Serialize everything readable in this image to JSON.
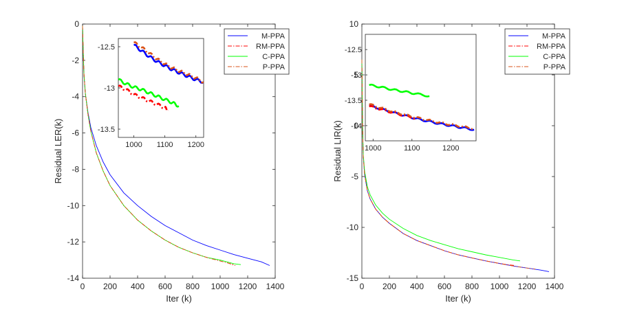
{
  "colors": {
    "M-PPA": "#0000ff",
    "RM-PPA": "#ff0000",
    "C-PPA": "#00ff00",
    "P-PPA": "#d95319"
  },
  "chart_data": [
    {
      "type": "line",
      "xlabel": "Iter (k)",
      "ylabel": "Residual LER(k)",
      "xlim": [
        0,
        1400
      ],
      "ylim": [
        -14,
        0
      ],
      "xticks": [
        "0",
        "200",
        "400",
        "600",
        "800",
        "1000",
        "1200",
        "1400"
      ],
      "yticks": [
        "0",
        "-2",
        "-4",
        "-6",
        "-8",
        "-10",
        "-12",
        "-14"
      ],
      "legend": {
        "placement": "top-right",
        "entries": [
          "M-PPA",
          "RM-PPA",
          "C-PPA",
          "P-PPA"
        ]
      },
      "series": [
        {
          "name": "M-PPA",
          "style": "solid",
          "x": [
            0,
            5,
            10,
            20,
            40,
            60,
            100,
            150,
            200,
            300,
            400,
            500,
            600,
            700,
            800,
            900,
            1000,
            1100,
            1200,
            1300,
            1360
          ],
          "y": [
            -0.1,
            -1.6,
            -2.8,
            -3.8,
            -4.9,
            -5.7,
            -6.7,
            -7.6,
            -8.3,
            -9.3,
            -10.0,
            -10.6,
            -11.1,
            -11.5,
            -11.9,
            -12.2,
            -12.45,
            -12.7,
            -12.9,
            -13.1,
            -13.3
          ]
        },
        {
          "name": "RM-PPA",
          "style": "dashdot",
          "x": [
            0,
            5,
            10,
            20,
            40,
            60,
            100,
            150,
            200,
            300,
            400,
            500,
            600,
            700,
            800,
            900,
            1000,
            1050,
            1110
          ],
          "y": [
            -0.1,
            -1.5,
            -2.7,
            -3.8,
            -5.0,
            -5.9,
            -7.1,
            -8.1,
            -8.9,
            -10.0,
            -10.8,
            -11.4,
            -11.9,
            -12.3,
            -12.6,
            -12.85,
            -13.05,
            -13.15,
            -13.3
          ]
        },
        {
          "name": "C-PPA",
          "style": "solid",
          "x": [
            0,
            5,
            10,
            20,
            40,
            60,
            100,
            150,
            200,
            300,
            400,
            500,
            600,
            700,
            800,
            900,
            1000,
            1100,
            1150
          ],
          "y": [
            -0.1,
            -1.5,
            -2.7,
            -3.8,
            -5.0,
            -5.9,
            -7.1,
            -8.1,
            -8.9,
            -10.0,
            -10.8,
            -11.4,
            -11.9,
            -12.3,
            -12.6,
            -12.85,
            -13.0,
            -13.2,
            -13.25
          ]
        },
        {
          "name": "P-PPA",
          "style": "dashdot",
          "x": [
            0,
            5,
            10,
            20,
            40,
            60,
            100,
            150,
            200,
            300,
            400,
            500,
            600,
            700,
            800,
            900,
            1000,
            1050,
            1100
          ],
          "y": [
            -0.1,
            -1.5,
            -2.7,
            -3.8,
            -5.0,
            -5.9,
            -7.1,
            -8.1,
            -8.9,
            -10.0,
            -10.8,
            -11.4,
            -11.9,
            -12.3,
            -12.6,
            -12.85,
            -13.05,
            -13.15,
            -13.25
          ]
        }
      ],
      "inset": {
        "xlim": [
          950,
          1225
        ],
        "ylim": [
          -13.6,
          -12.4
        ],
        "xticks": [
          "1000",
          "1100",
          "1200"
        ],
        "yticks": [
          "-12.5",
          "-13",
          "-13.5"
        ],
        "series": [
          {
            "name": "M-PPA",
            "x": [
              1000,
              1025,
              1050,
              1075,
              1100,
              1125,
              1150,
              1175,
              1200,
              1225
            ],
            "y": [
              -12.48,
              -12.55,
              -12.62,
              -12.68,
              -12.73,
              -12.78,
              -12.82,
              -12.86,
              -12.9,
              -12.93
            ]
          },
          {
            "name": "RM-PPA",
            "x": [
              950,
              975,
              1000,
              1025,
              1050,
              1075,
              1100,
              1110
            ],
            "y": [
              -12.98,
              -13.02,
              -13.08,
              -13.12,
              -13.16,
              -13.2,
              -13.24,
              -13.27
            ]
          },
          {
            "name": "C-PPA",
            "x": [
              950,
              975,
              1000,
              1025,
              1050,
              1075,
              1100,
              1125,
              1145
            ],
            "y": [
              -12.9,
              -12.95,
              -12.99,
              -13.02,
              -13.06,
              -13.1,
              -13.14,
              -13.18,
              -13.22
            ]
          },
          {
            "name": "P-PPA",
            "x": [
              1000,
              1025,
              1050,
              1075,
              1100,
              1125,
              1150,
              1175,
              1200,
              1225
            ],
            "y": [
              -12.45,
              -12.51,
              -12.58,
              -12.65,
              -12.71,
              -12.76,
              -12.8,
              -12.84,
              -12.88,
              -12.93
            ]
          }
        ]
      }
    },
    {
      "type": "line",
      "xlabel": "Iter (k)",
      "ylabel": "Residual LIR(k)",
      "xlim": [
        0,
        1400
      ],
      "ylim": [
        -15,
        10
      ],
      "xticks": [
        "0",
        "200",
        "400",
        "600",
        "800",
        "1000",
        "1200",
        "1400"
      ],
      "yticks": [
        "10",
        "5",
        "0",
        "-5",
        "-10",
        "-15"
      ],
      "legend": {
        "placement": "top-right",
        "entries": [
          "M-PPA",
          "RM-PPA",
          "C-PPA",
          "P-PPA"
        ]
      },
      "series": [
        {
          "name": "M-PPA",
          "style": "solid",
          "x": [
            0,
            5,
            10,
            20,
            40,
            60,
            100,
            150,
            200,
            300,
            400,
            500,
            600,
            700,
            800,
            900,
            1000,
            1100,
            1200,
            1300,
            1360
          ],
          "y": [
            6.5,
            0,
            -3.0,
            -4.8,
            -6.4,
            -7.2,
            -8.2,
            -9.0,
            -9.6,
            -10.6,
            -11.3,
            -11.8,
            -12.3,
            -12.7,
            -13.0,
            -13.3,
            -13.55,
            -13.8,
            -14.0,
            -14.2,
            -14.35
          ]
        },
        {
          "name": "RM-PPA",
          "style": "dashdot",
          "x": [
            0,
            5,
            10,
            20,
            40,
            60,
            100,
            150,
            200,
            300,
            400,
            500,
            600,
            700,
            800,
            900,
            1000,
            1050,
            1110
          ],
          "y": [
            6.5,
            0,
            -3.0,
            -4.8,
            -6.4,
            -7.2,
            -8.2,
            -9.0,
            -9.6,
            -10.6,
            -11.3,
            -11.8,
            -12.3,
            -12.7,
            -13.0,
            -13.3,
            -13.55,
            -13.65,
            -13.75
          ]
        },
        {
          "name": "C-PPA",
          "style": "solid",
          "x": [
            0,
            5,
            10,
            20,
            40,
            60,
            100,
            150,
            200,
            300,
            400,
            500,
            600,
            700,
            800,
            900,
            1000,
            1100,
            1150
          ],
          "y": [
            6.5,
            0,
            -2.8,
            -4.5,
            -6.0,
            -6.8,
            -7.8,
            -8.6,
            -9.2,
            -10.1,
            -10.8,
            -11.3,
            -11.7,
            -12.1,
            -12.4,
            -12.7,
            -12.95,
            -13.2,
            -13.3
          ]
        },
        {
          "name": "P-PPA",
          "style": "dashdot",
          "x": [
            0,
            5,
            10,
            20,
            40,
            60,
            100,
            150,
            200,
            300,
            400,
            500,
            600,
            700,
            800,
            900,
            1000,
            1100,
            1200,
            1260
          ],
          "y": [
            6.5,
            0,
            -3.0,
            -4.8,
            -6.4,
            -7.2,
            -8.2,
            -9.0,
            -9.6,
            -10.6,
            -11.3,
            -11.8,
            -12.3,
            -12.7,
            -13.0,
            -13.3,
            -13.55,
            -13.8,
            -14.0,
            -14.1
          ]
        }
      ],
      "inset": {
        "xlim": [
          980,
          1265
        ],
        "ylim": [
          -14.3,
          -12.2
        ],
        "xticks": [
          "1000",
          "1100",
          "1200"
        ],
        "yticks": [
          "-12.5",
          "-13",
          "-13.5",
          "-14"
        ],
        "series": [
          {
            "name": "M-PPA",
            "x": [
              990,
              1020,
              1050,
              1080,
              1110,
              1140,
              1170,
              1200,
              1230,
              1260
            ],
            "y": [
              -13.6,
              -13.67,
              -13.74,
              -13.8,
              -13.86,
              -13.91,
              -13.96,
              -14.0,
              -14.04,
              -14.08
            ]
          },
          {
            "name": "RM-PPA",
            "x": [
              990,
              1020,
              1050,
              1080,
              1110
            ],
            "y": [
              -13.62,
              -13.68,
              -13.74,
              -13.8,
              -13.86
            ]
          },
          {
            "name": "C-PPA",
            "x": [
              990,
              1020,
              1050,
              1080,
              1110,
              1145
            ],
            "y": [
              -13.2,
              -13.24,
              -13.29,
              -13.33,
              -13.37,
              -13.42
            ]
          },
          {
            "name": "P-PPA",
            "x": [
              990,
              1020,
              1050,
              1080,
              1110,
              1140,
              1170,
              1200,
              1230,
              1260
            ],
            "y": [
              -13.58,
              -13.65,
              -13.72,
              -13.78,
              -13.84,
              -13.89,
              -13.94,
              -13.98,
              -14.02,
              -14.06
            ]
          }
        ]
      }
    }
  ]
}
